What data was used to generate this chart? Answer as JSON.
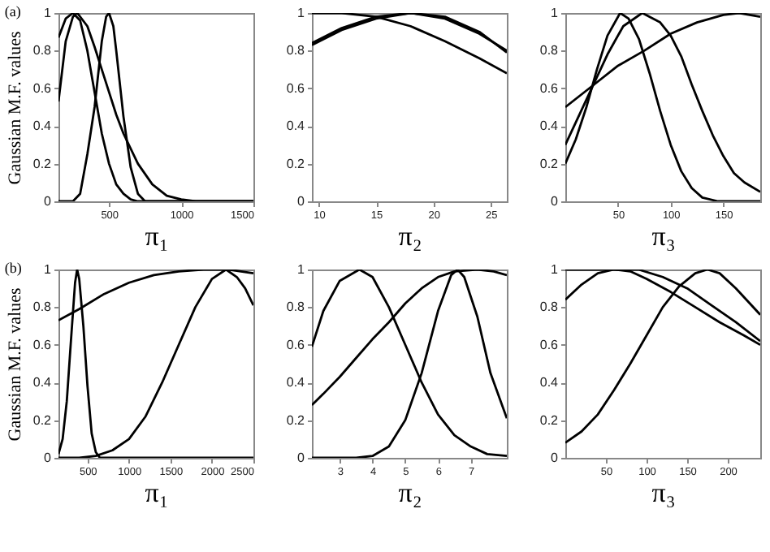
{
  "chart_data": [
    {
      "type": "line",
      "annotations": [
        "(a)"
      ],
      "ylabel": "Gaussian M.F. values",
      "xlabel": "π₁",
      "xlim": [
        150,
        1500
      ],
      "xticks": [
        500,
        1000,
        1500
      ],
      "ylim": [
        0,
        1
      ],
      "yticks": [
        0,
        0.2,
        0.4,
        0.6,
        0.8,
        1
      ],
      "series": [
        {
          "color": "#000000",
          "x": [
            150,
            200,
            250,
            300,
            350,
            400,
            450,
            500,
            550,
            600,
            650,
            700,
            1500
          ],
          "values": [
            0.87,
            0.97,
            1,
            0.96,
            0.8,
            0.58,
            0.36,
            0.2,
            0.09,
            0.04,
            0.01,
            0,
            0
          ]
        },
        {
          "color": "#000000",
          "x": [
            150,
            200,
            250,
            280,
            350,
            400,
            450,
            500,
            550,
            600,
            700,
            800,
            900,
            1000,
            1100,
            1500
          ],
          "values": [
            0.53,
            0.85,
            0.98,
            1,
            0.93,
            0.82,
            0.7,
            0.58,
            0.46,
            0.36,
            0.2,
            0.09,
            0.03,
            0.01,
            0,
            0
          ]
        },
        {
          "color": "#000000",
          "x": [
            150,
            250,
            300,
            350,
            400,
            450,
            480,
            500,
            530,
            550,
            600,
            650,
            700,
            750,
            1500
          ],
          "values": [
            0,
            0,
            0.04,
            0.25,
            0.5,
            0.85,
            0.98,
            1,
            0.93,
            0.8,
            0.45,
            0.18,
            0.04,
            0,
            0
          ]
        }
      ]
    },
    {
      "type": "line",
      "xlabel": "π₂",
      "xlim": [
        9.4,
        26.4
      ],
      "xticks": [
        10,
        15,
        20,
        25
      ],
      "ylim": [
        0,
        1
      ],
      "yticks": [
        0,
        0.2,
        0.4,
        0.6,
        0.8,
        1
      ],
      "series": [
        {
          "color": "#000000",
          "x": [
            9.4,
            12,
            15,
            18,
            21,
            24,
            26.4
          ],
          "values": [
            1,
            1,
            0.98,
            0.93,
            0.85,
            0.76,
            0.68
          ]
        },
        {
          "color": "#000000",
          "x": [
            9.4,
            12,
            15,
            18,
            21,
            24,
            26.4
          ],
          "values": [
            0.84,
            0.92,
            0.98,
            1,
            0.97,
            0.89,
            0.8
          ]
        },
        {
          "color": "#000000",
          "x": [
            9.4,
            12,
            15,
            18,
            21,
            24,
            26.4
          ],
          "values": [
            0.83,
            0.91,
            0.97,
            1,
            0.98,
            0.9,
            0.79
          ]
        }
      ]
    },
    {
      "type": "line",
      "xlabel": "π₃",
      "xlim": [
        0,
        185
      ],
      "xticks": [
        50,
        100,
        150
      ],
      "ylim": [
        0,
        1
      ],
      "yticks": [
        0,
        0.2,
        0.4,
        0.6,
        0.8,
        1
      ],
      "series": [
        {
          "color": "#000000",
          "x": [
            0,
            10,
            20,
            30,
            40,
            52,
            60,
            70,
            80,
            90,
            100,
            110,
            120,
            130,
            145,
            185
          ],
          "values": [
            0.2,
            0.33,
            0.5,
            0.7,
            0.88,
            1,
            0.97,
            0.86,
            0.68,
            0.48,
            0.3,
            0.16,
            0.07,
            0.02,
            0,
            0
          ]
        },
        {
          "color": "#000000",
          "x": [
            0,
            10,
            25,
            40,
            55,
            73,
            90,
            100,
            110,
            120,
            130,
            140,
            150,
            160,
            170,
            185
          ],
          "values": [
            0.3,
            0.42,
            0.6,
            0.78,
            0.93,
            1,
            0.95,
            0.88,
            0.77,
            0.62,
            0.48,
            0.35,
            0.24,
            0.15,
            0.1,
            0.05
          ]
        },
        {
          "color": "#000000",
          "x": [
            0,
            25,
            50,
            75,
            100,
            125,
            150,
            165,
            185
          ],
          "values": [
            0.5,
            0.61,
            0.72,
            0.8,
            0.89,
            0.95,
            0.99,
            1,
            0.98
          ]
        }
      ]
    },
    {
      "type": "line",
      "annotations": [
        "(b)"
      ],
      "ylabel": "Gaussian M.F. values",
      "xlabel": "π₁",
      "xlim": [
        150,
        2500
      ],
      "xticks": [
        500,
        1000,
        1500,
        2000,
        2500
      ],
      "ylim": [
        0,
        1
      ],
      "yticks": [
        0,
        0.2,
        0.4,
        0.6,
        0.8,
        1
      ],
      "series": [
        {
          "color": "#000000",
          "x": [
            150,
            200,
            250,
            300,
            350,
            375,
            400,
            450,
            500,
            550,
            600,
            650,
            2500
          ],
          "values": [
            0.02,
            0.1,
            0.3,
            0.62,
            0.93,
            1,
            0.95,
            0.7,
            0.38,
            0.13,
            0.03,
            0,
            0
          ]
        },
        {
          "color": "#000000",
          "x": [
            150,
            400,
            600,
            800,
            1000,
            1200,
            1400,
            1600,
            1800,
            2000,
            2170,
            2300,
            2400,
            2500
          ],
          "values": [
            0,
            0,
            0.01,
            0.04,
            0.1,
            0.22,
            0.4,
            0.6,
            0.8,
            0.95,
            1,
            0.96,
            0.9,
            0.81
          ]
        },
        {
          "color": "#000000",
          "x": [
            150,
            400,
            700,
            1000,
            1300,
            1600,
            1900,
            2200,
            2500
          ],
          "values": [
            0.73,
            0.79,
            0.87,
            0.93,
            0.97,
            0.99,
            1,
            1,
            0.98
          ]
        }
      ]
    },
    {
      "type": "line",
      "xlabel": "π₂",
      "xlim": [
        2.15,
        8.1
      ],
      "xticks": [
        3,
        4,
        5,
        6,
        7
      ],
      "ylim": [
        0,
        1
      ],
      "yticks": [
        0,
        0.2,
        0.4,
        0.6,
        0.8,
        1
      ],
      "series": [
        {
          "color": "#000000",
          "x": [
            2.15,
            2.5,
            3,
            3.6,
            4,
            4.5,
            5,
            5.5,
            6,
            6.5,
            7,
            7.5,
            8.1
          ],
          "values": [
            0.59,
            0.78,
            0.94,
            1,
            0.96,
            0.8,
            0.6,
            0.4,
            0.23,
            0.12,
            0.06,
            0.02,
            0.01
          ]
        },
        {
          "color": "#000000",
          "x": [
            2.15,
            2.5,
            3,
            3.5,
            4,
            4.5,
            5,
            5.5,
            6,
            6.5,
            7.2,
            7.7,
            8.1
          ],
          "values": [
            0.28,
            0.34,
            0.43,
            0.53,
            0.63,
            0.72,
            0.82,
            0.9,
            0.96,
            0.99,
            1,
            0.99,
            0.97
          ]
        },
        {
          "color": "#000000",
          "x": [
            2.15,
            3.5,
            4,
            4.5,
            5,
            5.5,
            6,
            6.4,
            6.6,
            6.8,
            7.2,
            7.6,
            8.1
          ],
          "values": [
            0,
            0,
            0.01,
            0.06,
            0.2,
            0.45,
            0.78,
            0.97,
            1,
            0.96,
            0.75,
            0.45,
            0.21
          ]
        }
      ]
    },
    {
      "type": "line",
      "xlabel": "π₃",
      "xlim": [
        0,
        240
      ],
      "xticks": [
        50,
        100,
        150,
        200
      ],
      "ylim": [
        0,
        1
      ],
      "yticks": [
        0,
        0.2,
        0.4,
        0.6,
        0.8,
        1
      ],
      "series": [
        {
          "color": "#000000",
          "x": [
            0,
            30,
            60,
            90,
            120,
            150,
            180,
            210,
            240
          ],
          "values": [
            1,
            1,
            1,
            1,
            0.96,
            0.9,
            0.81,
            0.72,
            0.62
          ]
        },
        {
          "color": "#000000",
          "x": [
            0,
            20,
            40,
            60,
            80,
            100,
            130,
            160,
            190,
            220,
            240
          ],
          "values": [
            0.84,
            0.92,
            0.98,
            1,
            0.99,
            0.95,
            0.88,
            0.8,
            0.72,
            0.65,
            0.6
          ]
        },
        {
          "color": "#000000",
          "x": [
            0,
            20,
            40,
            60,
            80,
            100,
            120,
            140,
            160,
            175,
            190,
            210,
            240
          ],
          "values": [
            0.08,
            0.14,
            0.23,
            0.36,
            0.5,
            0.65,
            0.8,
            0.91,
            0.98,
            1,
            0.98,
            0.9,
            0.76
          ]
        }
      ]
    }
  ]
}
